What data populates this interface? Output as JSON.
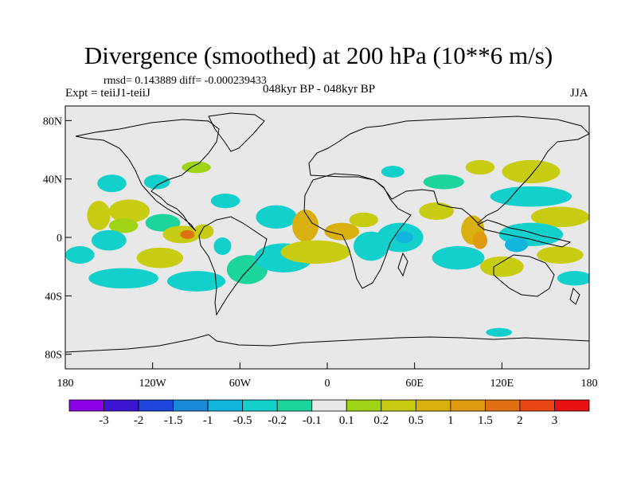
{
  "title": "Divergence (smoothed) at 200 hPa (10**6 m/s)",
  "stats": {
    "rmsd_label": "rmsd=",
    "rmsd": "0.143889",
    "diff_label": "diff=",
    "diff": "-0.000239433"
  },
  "experiment": "Expt = teiiJ1-teiiJ",
  "period": "048kyr BP - 048kyr BP",
  "season": "JJA",
  "map": {
    "projection": "cylindrical equidistant",
    "extent": {
      "lon": [
        -180,
        180
      ],
      "lat": [
        -90,
        90
      ]
    },
    "background_color": "#e8e8e8"
  },
  "axes": {
    "lat_ticks": [
      {
        "value": 80,
        "label": "80N"
      },
      {
        "value": 40,
        "label": "40N"
      },
      {
        "value": 0,
        "label": "0"
      },
      {
        "value": -40,
        "label": "40S"
      },
      {
        "value": -80,
        "label": "80S"
      }
    ],
    "lon_ticks": [
      {
        "value": -180,
        "label": "180"
      },
      {
        "value": -120,
        "label": "120W"
      },
      {
        "value": -60,
        "label": "60W"
      },
      {
        "value": 0,
        "label": "0"
      },
      {
        "value": 60,
        "label": "60E"
      },
      {
        "value": 120,
        "label": "120E"
      },
      {
        "value": 180,
        "label": "180"
      }
    ]
  },
  "colorbar": {
    "colors": [
      "#8c00e6",
      "#3c14d2",
      "#1e46dc",
      "#1a8ad8",
      "#10b4dc",
      "#14d0cc",
      "#1cd49c",
      "#e8e8e8",
      "#a0d416",
      "#c8cc12",
      "#d8b010",
      "#e09a10",
      "#e07012",
      "#e84614",
      "#e81010"
    ],
    "labels": [
      "-3",
      "-2",
      "-1.5",
      "-1",
      "-0.5",
      "-0.2",
      "-0.1",
      "0.1",
      "0.2",
      "0.5",
      "1",
      "1.5",
      "2",
      "3"
    ]
  },
  "field_blobs": [
    {
      "lon": -157,
      "lat": 15,
      "rx": 8,
      "ry": 10,
      "level": 9
    },
    {
      "lon": -136,
      "lat": 18,
      "rx": 14,
      "ry": 8,
      "level": 9
    },
    {
      "lon": -140,
      "lat": 8,
      "rx": 10,
      "ry": 5,
      "level": 8
    },
    {
      "lon": -170,
      "lat": -12,
      "rx": 10,
      "ry": 6,
      "level": 5
    },
    {
      "lon": -150,
      "lat": -2,
      "rx": 12,
      "ry": 7,
      "level": 5
    },
    {
      "lon": -113,
      "lat": 10,
      "rx": 12,
      "ry": 6,
      "level": 6
    },
    {
      "lon": -100,
      "lat": 2,
      "rx": 13,
      "ry": 6,
      "level": 9
    },
    {
      "lon": -96,
      "lat": 2,
      "rx": 5,
      "ry": 3,
      "level": 12
    },
    {
      "lon": -115,
      "lat": -14,
      "rx": 16,
      "ry": 7,
      "level": 9
    },
    {
      "lon": -85,
      "lat": 4,
      "rx": 7,
      "ry": 5,
      "level": 9
    },
    {
      "lon": -72,
      "lat": -6,
      "rx": 6,
      "ry": 6,
      "level": 5
    },
    {
      "lon": -140,
      "lat": -28,
      "rx": 24,
      "ry": 7,
      "level": 5
    },
    {
      "lon": -90,
      "lat": -30,
      "rx": 20,
      "ry": 7,
      "level": 5
    },
    {
      "lon": -55,
      "lat": -22,
      "rx": 14,
      "ry": 10,
      "level": 6
    },
    {
      "lon": -30,
      "lat": -14,
      "rx": 20,
      "ry": 10,
      "level": 5
    },
    {
      "lon": -148,
      "lat": 37,
      "rx": 10,
      "ry": 6,
      "level": 5
    },
    {
      "lon": -117,
      "lat": 38,
      "rx": 9,
      "ry": 5,
      "level": 5
    },
    {
      "lon": -90,
      "lat": 48,
      "rx": 10,
      "ry": 4,
      "level": 8
    },
    {
      "lon": -70,
      "lat": 25,
      "rx": 10,
      "ry": 5,
      "level": 5
    },
    {
      "lon": -35,
      "lat": 14,
      "rx": 14,
      "ry": 8,
      "level": 5
    },
    {
      "lon": -15,
      "lat": 8,
      "rx": 9,
      "ry": 11,
      "level": 10
    },
    {
      "lon": 10,
      "lat": 4,
      "rx": 12,
      "ry": 6,
      "level": 10
    },
    {
      "lon": -8,
      "lat": -10,
      "rx": 24,
      "ry": 8,
      "level": 9
    },
    {
      "lon": 30,
      "lat": -6,
      "rx": 12,
      "ry": 10,
      "level": 5
    },
    {
      "lon": 25,
      "lat": 12,
      "rx": 10,
      "ry": 5,
      "level": 9
    },
    {
      "lon": 50,
      "lat": 0,
      "rx": 16,
      "ry": 10,
      "level": 5
    },
    {
      "lon": 53,
      "lat": 0,
      "rx": 6,
      "ry": 4,
      "level": 4
    },
    {
      "lon": 75,
      "lat": 18,
      "rx": 12,
      "ry": 6,
      "level": 9
    },
    {
      "lon": 45,
      "lat": 45,
      "rx": 8,
      "ry": 4,
      "level": 5
    },
    {
      "lon": 80,
      "lat": 38,
      "rx": 14,
      "ry": 5,
      "level": 6
    },
    {
      "lon": 105,
      "lat": 48,
      "rx": 10,
      "ry": 5,
      "level": 9
    },
    {
      "lon": 140,
      "lat": 45,
      "rx": 20,
      "ry": 8,
      "level": 9
    },
    {
      "lon": 140,
      "lat": 28,
      "rx": 28,
      "ry": 7,
      "level": 5
    },
    {
      "lon": 160,
      "lat": 14,
      "rx": 20,
      "ry": 7,
      "level": 9
    },
    {
      "lon": 100,
      "lat": 5,
      "rx": 8,
      "ry": 10,
      "level": 10
    },
    {
      "lon": 105,
      "lat": -2,
      "rx": 5,
      "ry": 6,
      "level": 11
    },
    {
      "lon": 140,
      "lat": 2,
      "rx": 22,
      "ry": 8,
      "level": 5
    },
    {
      "lon": 130,
      "lat": -5,
      "rx": 8,
      "ry": 5,
      "level": 4
    },
    {
      "lon": 90,
      "lat": -14,
      "rx": 18,
      "ry": 8,
      "level": 5
    },
    {
      "lon": 120,
      "lat": -20,
      "rx": 15,
      "ry": 7,
      "level": 9
    },
    {
      "lon": 160,
      "lat": -12,
      "rx": 16,
      "ry": 6,
      "level": 9
    },
    {
      "lon": 170,
      "lat": -28,
      "rx": 12,
      "ry": 5,
      "level": 5
    },
    {
      "lon": 118,
      "lat": -65,
      "rx": 9,
      "ry": 3,
      "level": 5
    }
  ]
}
